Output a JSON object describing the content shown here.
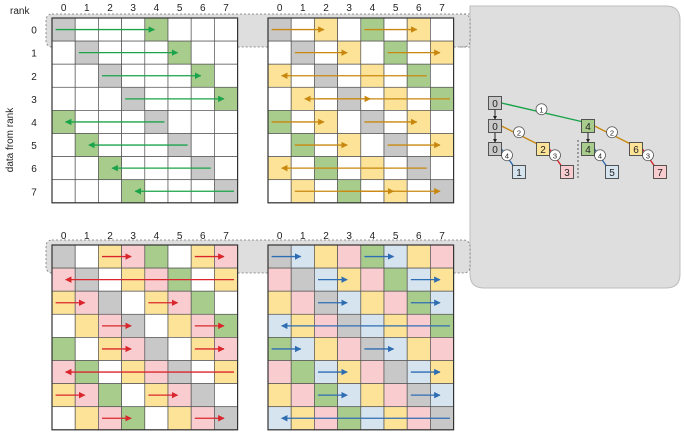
{
  "labels": {
    "rank_header": "rank",
    "data_from_rank": "data from rank",
    "col_numbers": [
      "0",
      "1",
      "2",
      "3",
      "4",
      "5",
      "6",
      "7"
    ],
    "row_numbers": [
      "0",
      "1",
      "2",
      "3",
      "4",
      "5",
      "6",
      "7"
    ]
  },
  "colors": {
    "gray": "#c8c8c8",
    "green": "#a8cc8c",
    "yellow": "#fde398",
    "pink": "#f9cdd0",
    "blue": "#d6e4f0",
    "white": "#ffffff",
    "arrow_green": "#1aa34a",
    "arrow_orange": "#c8870e",
    "arrow_red": "#d9262c",
    "arrow_blue": "#2f6db3",
    "panel": "#dedede"
  },
  "panels": [
    {
      "id": "grid-step1",
      "cells": [
        "GWWWGWWW",
        "WGWWWGWW",
        "WWGWWWGW",
        "WWWGWWWG",
        "GWWWGWWW",
        "WGWWWGWW",
        "WWGWWWGW",
        "WWWGWWWG"
      ],
      "arrow_color": "arrow_green",
      "arrows": [
        [
          0,
          0,
          4
        ],
        [
          1,
          1,
          5
        ],
        [
          2,
          2,
          6
        ],
        [
          3,
          3,
          7
        ],
        [
          4,
          4,
          0
        ],
        [
          5,
          5,
          1
        ],
        [
          6,
          6,
          2
        ],
        [
          7,
          7,
          3
        ]
      ]
    },
    {
      "id": "grid-step2",
      "cells": [
        "GWYWGWYW",
        "WGWYWGWY",
        "YWGWYWGW",
        "WYWGWYWG",
        "GWYWGWYW",
        "WGWYWGWY",
        "YWGWYWGW",
        "WYWGWYWG"
      ],
      "arrow_color": "arrow_orange",
      "arrows": [
        [
          0,
          0,
          2
        ],
        [
          0,
          4,
          6
        ],
        [
          1,
          1,
          3
        ],
        [
          1,
          5,
          7
        ],
        [
          2,
          6,
          0
        ],
        [
          3,
          2,
          4
        ],
        [
          3,
          7,
          1
        ],
        [
          4,
          0,
          2
        ],
        [
          4,
          4,
          6
        ],
        [
          5,
          1,
          3
        ],
        [
          5,
          5,
          7
        ],
        [
          6,
          6,
          0
        ],
        [
          7,
          3,
          5
        ],
        [
          7,
          1,
          7
        ]
      ]
    },
    {
      "id": "grid-step3",
      "cells": [
        "GWYPGWYP",
        "PGWYPGWY",
        "YPGWYPGW",
        "WYPGWYPG",
        "GWYPGWYP",
        "PGWYPGWY",
        "YPGWYPGW",
        "WYPGWYPG"
      ],
      "arrow_color": "arrow_red",
      "arrows": [
        [
          0,
          2,
          3
        ],
        [
          0,
          6,
          7
        ],
        [
          1,
          7,
          0
        ],
        [
          2,
          0,
          1
        ],
        [
          2,
          4,
          5
        ],
        [
          3,
          2,
          3
        ],
        [
          3,
          6,
          7
        ],
        [
          4,
          2,
          3
        ],
        [
          4,
          6,
          7
        ],
        [
          5,
          7,
          0
        ],
        [
          6,
          0,
          1
        ],
        [
          6,
          4,
          5
        ],
        [
          7,
          2,
          3
        ],
        [
          7,
          6,
          7
        ]
      ]
    },
    {
      "id": "grid-step4",
      "cells": [
        "GBYPGBYP",
        "PGBYPGBY",
        "YPGBYPGB",
        "BYPGBYPG",
        "GBYPGBYP",
        "PGBYPGBY",
        "YPGBYPGB",
        "BYPGBYPG"
      ],
      "arrow_color": "arrow_blue",
      "arrows": [
        [
          0,
          0,
          1
        ],
        [
          0,
          4,
          5
        ],
        [
          1,
          2,
          3
        ],
        [
          1,
          6,
          7
        ],
        [
          2,
          2,
          3
        ],
        [
          2,
          6,
          7
        ],
        [
          3,
          7,
          0
        ],
        [
          4,
          0,
          1
        ],
        [
          4,
          4,
          5
        ],
        [
          5,
          2,
          3
        ],
        [
          5,
          6,
          7
        ],
        [
          6,
          2,
          3
        ],
        [
          6,
          6,
          7
        ],
        [
          7,
          7,
          0
        ]
      ]
    }
  ],
  "tree": {
    "nodes": [
      {
        "label": "0",
        "fill": "gray"
      },
      {
        "label": "0",
        "fill": "gray"
      },
      {
        "label": "0",
        "fill": "gray"
      },
      {
        "label": "1",
        "fill": "blue"
      },
      {
        "label": "2",
        "fill": "yellow"
      },
      {
        "label": "3",
        "fill": "pink"
      },
      {
        "label": "4",
        "fill": "green"
      },
      {
        "label": "4",
        "fill": "green"
      },
      {
        "label": "5",
        "fill": "blue"
      },
      {
        "label": "6",
        "fill": "yellow"
      },
      {
        "label": "7",
        "fill": "pink"
      }
    ],
    "step_labels": [
      "1",
      "2",
      "2",
      "3",
      "3",
      "4",
      "4"
    ]
  }
}
